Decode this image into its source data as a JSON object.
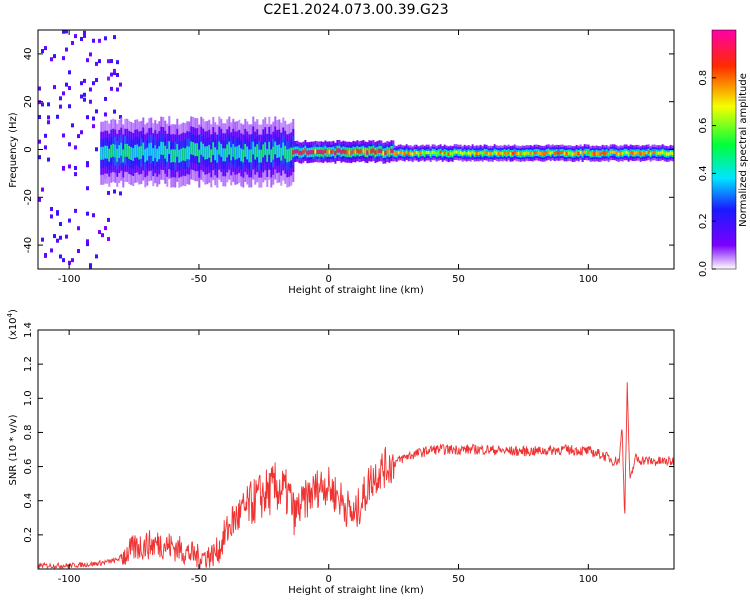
{
  "title": "C2E1.2024.073.00.39.G23",
  "chart_data": [
    {
      "type": "heatmap",
      "xlabel": "Height of straight line (km)",
      "ylabel": "Frequency (Hz)",
      "xlim": [
        -112,
        133
      ],
      "ylim": [
        -50,
        50
      ],
      "xticks": [
        -100,
        -50,
        0,
        50,
        100
      ],
      "yticks": [
        -40,
        -20,
        0,
        20,
        40
      ],
      "xtick_labels": [
        "-100",
        "-50",
        "0",
        "50",
        "100"
      ],
      "ytick_labels": [
        "-40",
        "-20",
        "0",
        "20",
        "40"
      ],
      "grid": false,
      "colorbar": {
        "label": "Normalized spectral amplitude",
        "range": [
          0.0,
          1.0
        ],
        "ticks": [
          0.0,
          0.2,
          0.4,
          0.6,
          0.8
        ],
        "tick_labels": [
          "0.0",
          "0.2",
          "0.4",
          "0.6",
          "0.8"
        ],
        "colormap": "rainbow (white to violet, blue, cyan, green, yellow, red, magenta)"
      },
      "regions": [
        {
          "x": [
            -112,
            -80
          ],
          "freq_center": 0,
          "freq_halfwidth": 50,
          "amplitude": 0.15,
          "description": "scattered noise"
        },
        {
          "x": [
            -88,
            -14
          ],
          "freq_center": -1,
          "freq_halfwidth": 6,
          "amplitude": 0.45
        },
        {
          "x": [
            -14,
            25
          ],
          "freq_center": -1,
          "freq_halfwidth": 2,
          "amplitude": 0.85
        },
        {
          "x": [
            25,
            133
          ],
          "freq_center": -1.5,
          "freq_halfwidth": 1.5,
          "amplitude": 0.7
        }
      ]
    },
    {
      "type": "line",
      "xlabel": "Height of straight line (km)",
      "ylabel": "SNR (10 * v/v)",
      "y_multiplier": "(x10",
      "y_multiplier_exp": "4",
      "y_multiplier_close": ")",
      "xlim": [
        -112,
        133
      ],
      "ylim": [
        0,
        1.4
      ],
      "xticks": [
        -100,
        -50,
        0,
        50,
        100
      ],
      "yticks": [
        0.2,
        0.4,
        0.6,
        0.8,
        1.0,
        1.2,
        1.4
      ],
      "xtick_labels": [
        "-100",
        "-50",
        "0",
        "50",
        "100"
      ],
      "ytick_labels": [
        "0.2",
        "0.4",
        "0.6",
        "0.8",
        "1.0",
        "1.2",
        "1.4"
      ],
      "grid": false,
      "color": "#ee3333",
      "series": [
        {
          "x": [
            -112,
            -100,
            -90,
            -82,
            -78,
            -74,
            -70,
            -65,
            -60,
            -55,
            -50,
            -45,
            -42,
            -40,
            -37,
            -34,
            -30,
            -26,
            -22,
            -20,
            -18,
            -15,
            -13,
            -12,
            -10,
            -8,
            -6,
            -4,
            -2,
            0,
            2,
            4,
            6,
            8,
            10,
            12,
            14,
            16,
            18,
            20,
            25,
            30,
            35,
            40,
            50,
            60,
            70,
            80,
            90,
            100,
            105,
            108,
            110,
            112,
            113,
            114,
            115,
            116,
            118,
            120,
            125,
            133
          ],
          "y": [
            0.02,
            0.02,
            0.03,
            0.05,
            0.09,
            0.13,
            0.14,
            0.15,
            0.13,
            0.1,
            0.07,
            0.08,
            0.12,
            0.2,
            0.28,
            0.32,
            0.38,
            0.43,
            0.46,
            0.48,
            0.46,
            0.42,
            0.3,
            0.35,
            0.38,
            0.42,
            0.45,
            0.48,
            0.5,
            0.48,
            0.45,
            0.42,
            0.38,
            0.34,
            0.3,
            0.38,
            0.44,
            0.52,
            0.55,
            0.58,
            0.62,
            0.66,
            0.68,
            0.7,
            0.7,
            0.7,
            0.69,
            0.69,
            0.7,
            0.69,
            0.67,
            0.65,
            0.63,
            0.64,
            0.85,
            0.3,
            1.1,
            0.5,
            0.65,
            0.64,
            0.63,
            0.63
          ]
        }
      ]
    }
  ]
}
